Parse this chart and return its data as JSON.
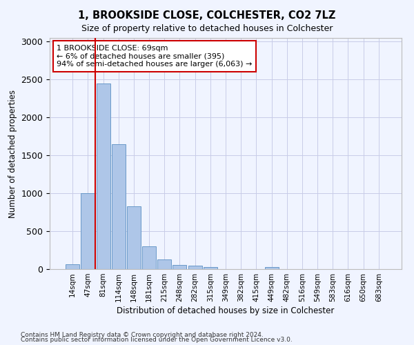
{
  "title": "1, BROOKSIDE CLOSE, COLCHESTER, CO2 7LZ",
  "subtitle": "Size of property relative to detached houses in Colchester",
  "xlabel": "Distribution of detached houses by size in Colchester",
  "ylabel": "Number of detached properties",
  "bar_labels": [
    "14sqm",
    "47sqm",
    "81sqm",
    "114sqm",
    "148sqm",
    "181sqm",
    "215sqm",
    "248sqm",
    "282sqm",
    "315sqm",
    "349sqm",
    "382sqm",
    "415sqm",
    "449sqm",
    "482sqm",
    "516sqm",
    "549sqm",
    "583sqm",
    "616sqm",
    "650sqm",
    "683sqm"
  ],
  "bar_heights": [
    60,
    1000,
    2450,
    1650,
    830,
    305,
    130,
    55,
    45,
    25,
    0,
    0,
    0,
    30,
    0,
    0,
    0,
    0,
    0,
    0,
    0
  ],
  "bar_color": "#aec6e8",
  "bar_edge_color": "#5a8fc2",
  "vline_color": "#cc0000",
  "annotation_text": "1 BROOKSIDE CLOSE: 69sqm\n← 6% of detached houses are smaller (395)\n94% of semi-detached houses are larger (6,063) →",
  "annotation_box_color": "#cc0000",
  "ylim": [
    0,
    3050
  ],
  "yticks": [
    0,
    500,
    1000,
    1500,
    2000,
    2500,
    3000
  ],
  "footnote1": "Contains HM Land Registry data © Crown copyright and database right 2024.",
  "footnote2": "Contains public sector information licensed under the Open Government Licence v3.0.",
  "bg_color": "#f0f4ff",
  "grid_color": "#c8cce8"
}
